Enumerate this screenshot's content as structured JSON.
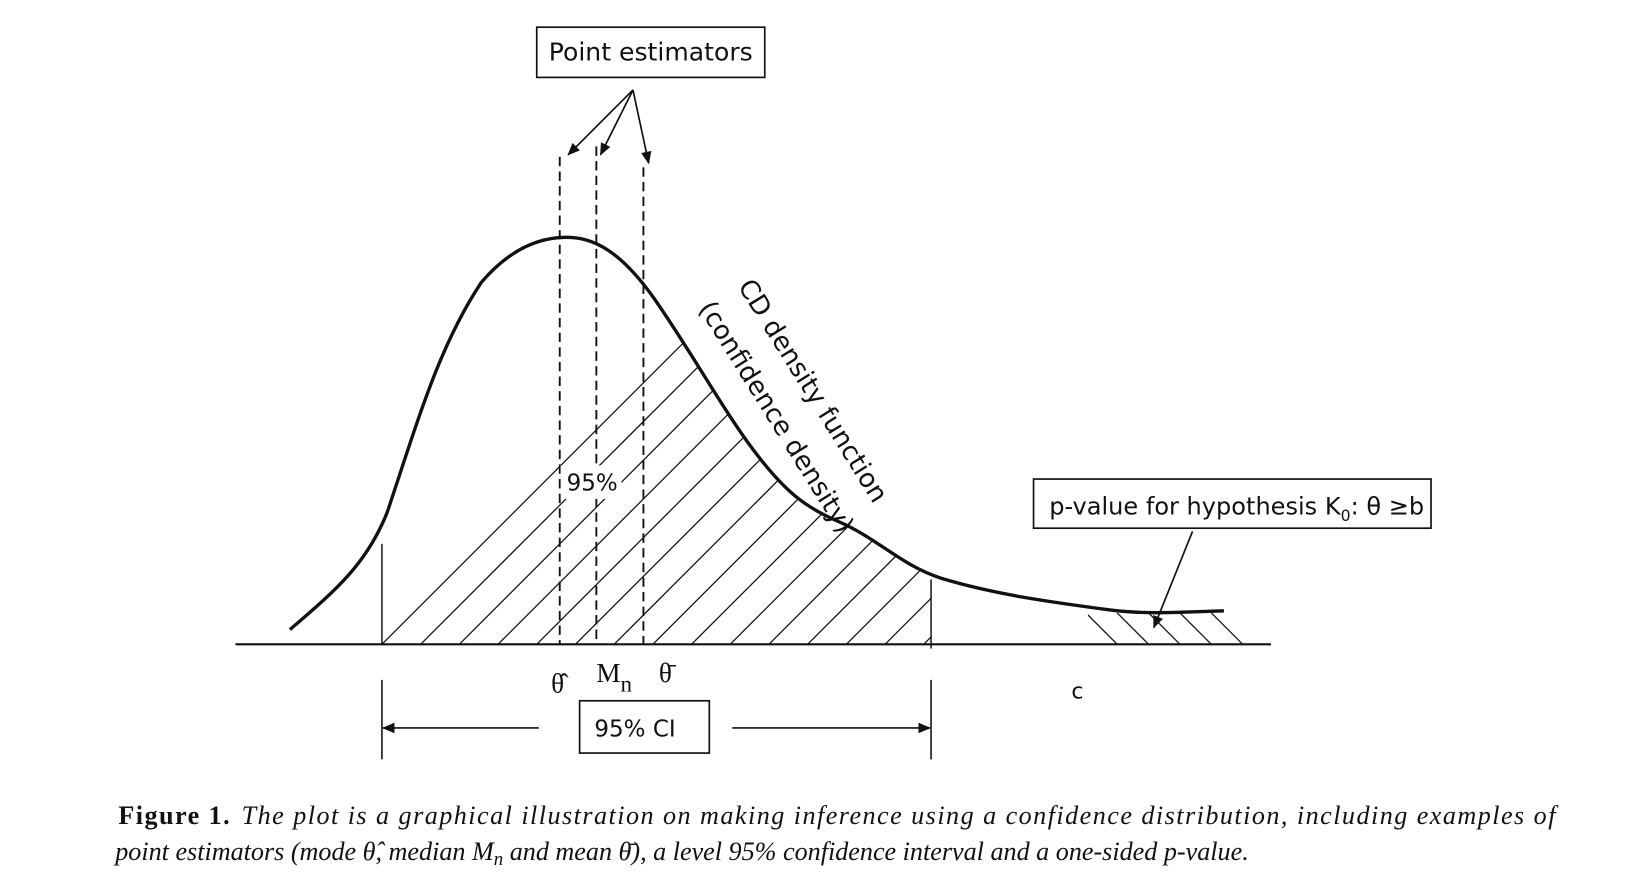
{
  "figure": {
    "callout": "Point estimators",
    "curve_label": [
      "CD density function",
      "(confidence density)"
    ],
    "area_label": "95%",
    "pvalue_label": {
      "text": "p-value for hypothesis K",
      "subscript": "0",
      "rest": ": θ ≥b"
    },
    "axis_labels": {
      "mode": "θ̂",
      "median": "M",
      "median_sub": "n",
      "mean": "θ̄",
      "c": "c"
    },
    "interval_label": "95% CI"
  },
  "caption": {
    "label": "Figure 1.",
    "line1": "The plot is a graphical illustration on making inference using a confidence distribution, including examples of",
    "line2a": "point estimators (mode θ̂, median M",
    "line2_sub": "n",
    "line2b": " and mean θ̄), a level 95% confidence interval and a one-sided p-value."
  }
}
